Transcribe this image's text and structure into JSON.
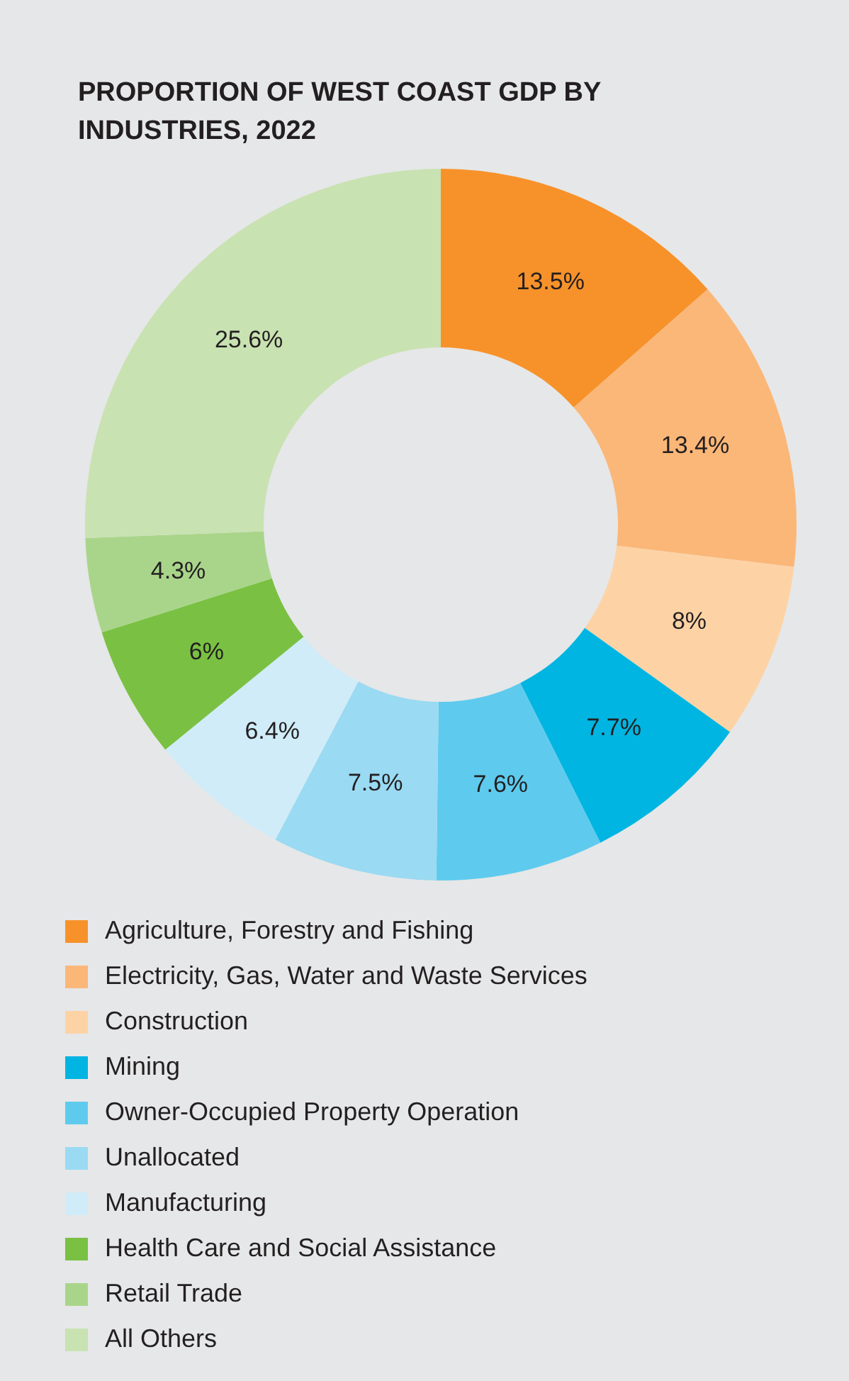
{
  "chart_data": {
    "type": "donut",
    "title": "PROPORTION OF WEST COAST GDP BY INDUSTRIES, 2022",
    "categories": [
      "Agriculture, Forestry and Fishing",
      "Electricity, Gas, Water and Waste Services",
      "Construction",
      "Mining",
      "Owner-Occupied Property Operation",
      "Unallocated",
      "Manufacturing",
      "Health Care and Social Assistance",
      "Retail Trade",
      "All Others"
    ],
    "values": [
      13.5,
      13.4,
      8,
      7.7,
      7.6,
      7.5,
      6.4,
      6,
      4.3,
      25.6
    ],
    "value_labels": [
      "13.5%",
      "13.4%",
      "8%",
      "7.7%",
      "7.6%",
      "7.5%",
      "6.4%",
      "6%",
      "4.3%",
      "25.6%"
    ],
    "colors": [
      "#f7922a",
      "#fbb778",
      "#fdd3a5",
      "#00b5e2",
      "#5ecbee",
      "#9adaf3",
      "#d0ecf8",
      "#7ac143",
      "#a9d58a",
      "#c8e2b1"
    ],
    "legend": "bottom"
  }
}
